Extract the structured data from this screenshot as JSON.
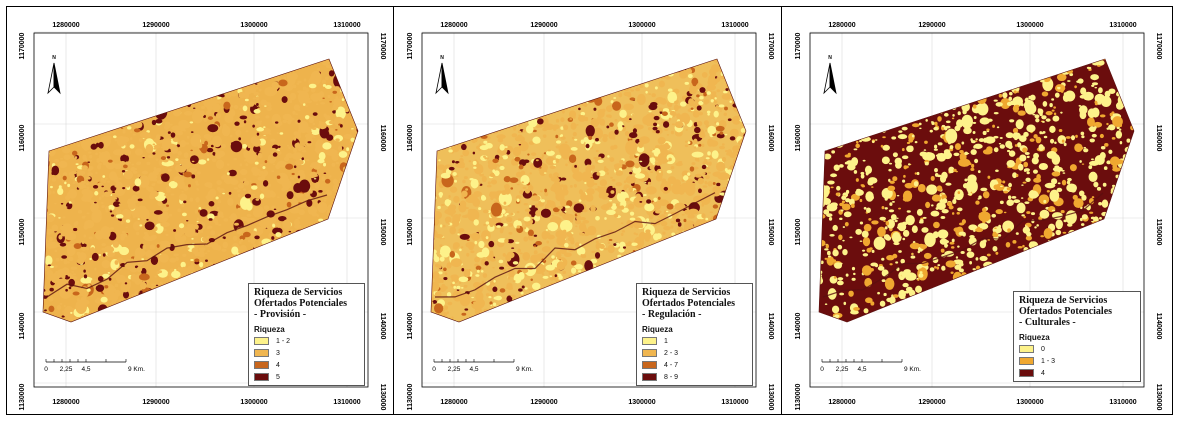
{
  "axes": {
    "x_ticks": [
      "1280000",
      "1290000",
      "1300000",
      "1310000"
    ],
    "y_ticks": [
      "1170000",
      "1160000",
      "1150000",
      "1140000",
      "1130000"
    ]
  },
  "north_arrow": "N",
  "scale_bar": {
    "labels": [
      "0",
      "2,25",
      "4,5",
      "9 Km."
    ]
  },
  "panels": [
    {
      "title_lines": [
        "Riqueza de Servicios",
        "Ofertados Potenciales",
        "- Provisión -"
      ],
      "legend_label": "Riqueza",
      "classes": [
        {
          "label": "1 - 2",
          "color": "#fdf28a"
        },
        {
          "label": "3",
          "color": "#f0b650"
        },
        {
          "label": "4",
          "color": "#c8661c"
        },
        {
          "label": "5",
          "color": "#6b0d0d"
        }
      ],
      "base_color": "#eeb34c",
      "weights": [
        0.12,
        0.7,
        0.04,
        0.14
      ]
    },
    {
      "title_lines": [
        "Riqueza de Servicios",
        "Ofertados Potenciales",
        "- Regulación -"
      ],
      "legend_label": "Riqueza",
      "classes": [
        {
          "label": "1",
          "color": "#fdf28a"
        },
        {
          "label": "2 - 3",
          "color": "#f0b650"
        },
        {
          "label": "4 - 7",
          "color": "#c8661c"
        },
        {
          "label": "8 - 9",
          "color": "#6b0d0d"
        }
      ],
      "base_color": "#efbf5a",
      "weights": [
        0.22,
        0.62,
        0.06,
        0.1
      ]
    },
    {
      "title_lines": [
        "Riqueza de Servicios",
        "Ofertados Potenciales",
        "- Culturales -"
      ],
      "legend_label": "Riqueza",
      "classes": [
        {
          "label": "0",
          "color": "#fdf28a"
        },
        {
          "label": "1 - 3",
          "color": "#f0a830"
        },
        {
          "label": "4",
          "color": "#6b0d0d"
        }
      ],
      "base_color": "#6b0d0d",
      "weights": [
        0.42,
        0.18,
        0.4
      ]
    }
  ]
}
